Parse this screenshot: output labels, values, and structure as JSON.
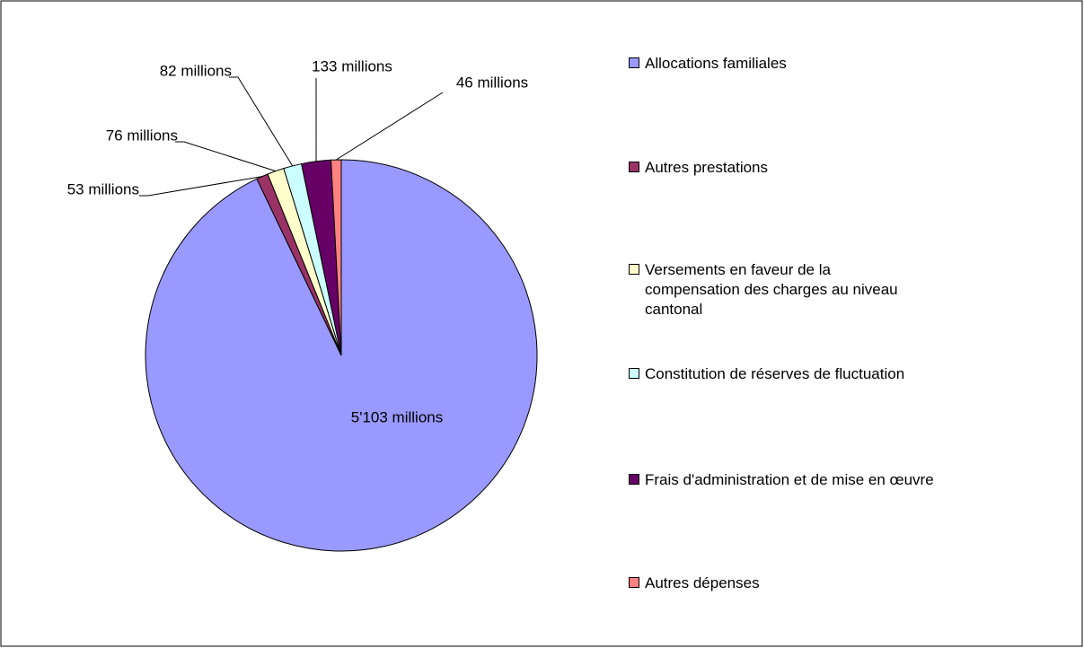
{
  "chart_data": {
    "type": "pie",
    "categories": [
      "Allocations familiales",
      "Autres prestations",
      "Versements en faveur de la compensation des charges au niveau cantonal",
      "Constitution de réserves de fluctuation",
      "Frais d'administration et de mise en œuvre",
      "Autres dépenses"
    ],
    "values": [
      5103,
      53,
      76,
      82,
      133,
      46
    ],
    "value_labels": [
      "5'103 millions",
      "53 millions",
      "76 millions",
      "82 millions",
      "133 millions",
      "46 millions"
    ],
    "colors": [
      "#9999ff",
      "#993366",
      "#ffffcc",
      "#ccffff",
      "#660066",
      "#ff8080"
    ],
    "legend": "right"
  }
}
